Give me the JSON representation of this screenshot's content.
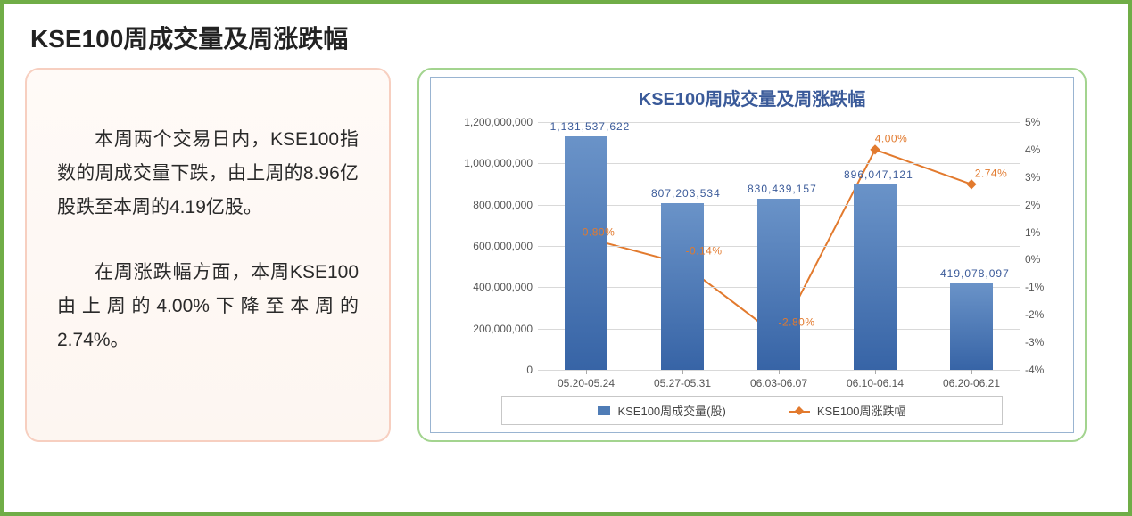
{
  "page_title": "KSE100周成交量及周涨跌幅",
  "text_panel": {
    "para1": "本周两个交易日内，KSE100指数的周成交量下跌，由上周的8.96亿股跌至本周的4.19亿股。",
    "para2": "在周涨跌幅方面，本周KSE100由上周的4.00%下降至本周的2.74%。"
  },
  "chart": {
    "title": "KSE100周成交量及周涨跌幅",
    "type": "bar+line",
    "background_color": "#ffffff",
    "grid_color": "#d9d9d9",
    "categories": [
      "05.20-05.24",
      "05.27-05.31",
      "06.03-06.07",
      "06.10-06.14",
      "06.20-06.21"
    ],
    "bars": {
      "series_name": "KSE100周成交量(股)",
      "values": [
        1131537622,
        807203534,
        830439157,
        896047121,
        419078097
      ],
      "value_labels": [
        "1,131,537,622",
        "807,203,534",
        "830,439,157",
        "896,047,121",
        "419,078,097"
      ],
      "color_top": "#6a93c8",
      "color_bottom": "#3764a6",
      "bar_width_ratio": 0.45
    },
    "line": {
      "series_name": "KSE100周涨跌幅",
      "values_pct": [
        0.8,
        -0.14,
        -2.8,
        4.0,
        2.74
      ],
      "value_labels": [
        "0.80%",
        "-0.14%",
        "-2.80%",
        "4.00%",
        "2.74%"
      ],
      "line_color": "#e27a2e",
      "marker": "diamond"
    },
    "y_left": {
      "min": 0,
      "max": 1200000000,
      "step": 200000000,
      "tick_labels": [
        "0",
        "200,000,000",
        "400,000,000",
        "600,000,000",
        "800,000,000",
        "1,000,000,000",
        "1,200,000,000"
      ]
    },
    "y_right": {
      "min": -4,
      "max": 5,
      "step": 1,
      "tick_labels": [
        "-4%",
        "-3%",
        "-2%",
        "-1%",
        "0%",
        "1%",
        "2%",
        "3%",
        "4%",
        "5%"
      ]
    },
    "legend": {
      "item1": "KSE100周成交量(股)",
      "item2": "KSE100周涨跌幅"
    }
  },
  "colors": {
    "outer_border": "#70ad47",
    "text_panel_border": "#f7cfc0",
    "chart_panel_border": "#a3d48f",
    "chart_inner_border": "#99b4d1",
    "title_color": "#3a5a99"
  }
}
